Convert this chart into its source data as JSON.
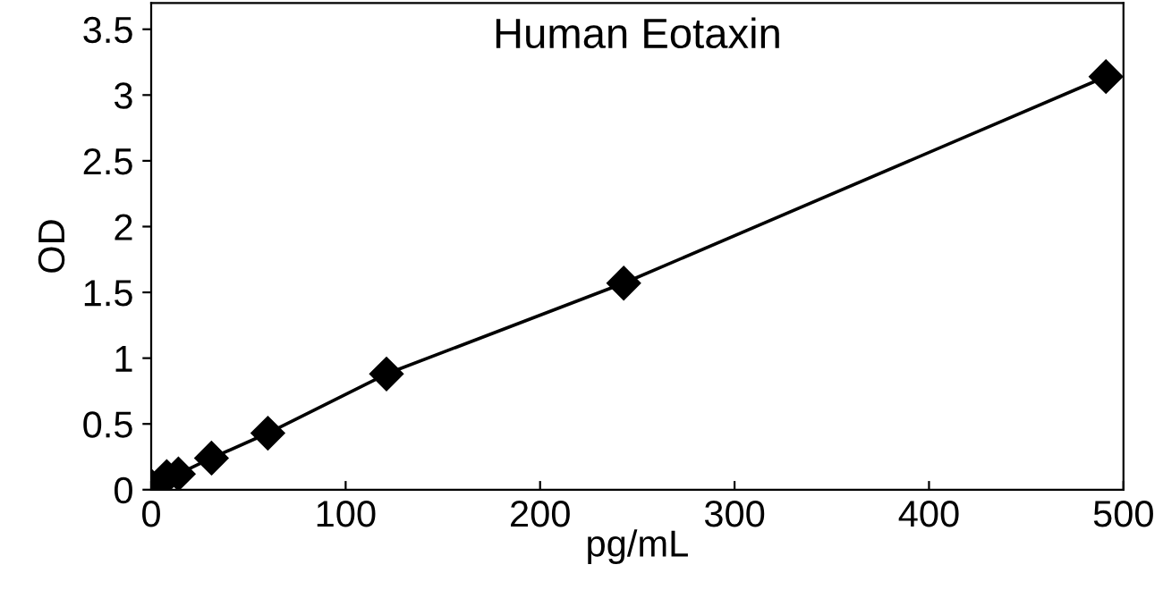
{
  "chart_data": {
    "type": "line",
    "title": "Human Eotaxin",
    "xlabel": "pg/mL",
    "ylabel": "OD",
    "x": [
      0,
      8,
      14,
      31,
      60,
      121,
      243,
      491
    ],
    "series": [
      {
        "color": "#000000",
        "values": [
          0.03,
          0.1,
          0.12,
          0.24,
          0.43,
          0.88,
          1.57,
          3.14
        ]
      }
    ],
    "xlim": [
      0,
      500
    ],
    "ylim": [
      0,
      3.7
    ],
    "xticks": [
      0,
      100,
      200,
      300,
      400,
      500
    ],
    "yticks": [
      0,
      0.5,
      1,
      1.5,
      2,
      2.5,
      3,
      3.5
    ],
    "marker": "diamond",
    "line_style": "solid",
    "grid": false,
    "legend": false
  }
}
